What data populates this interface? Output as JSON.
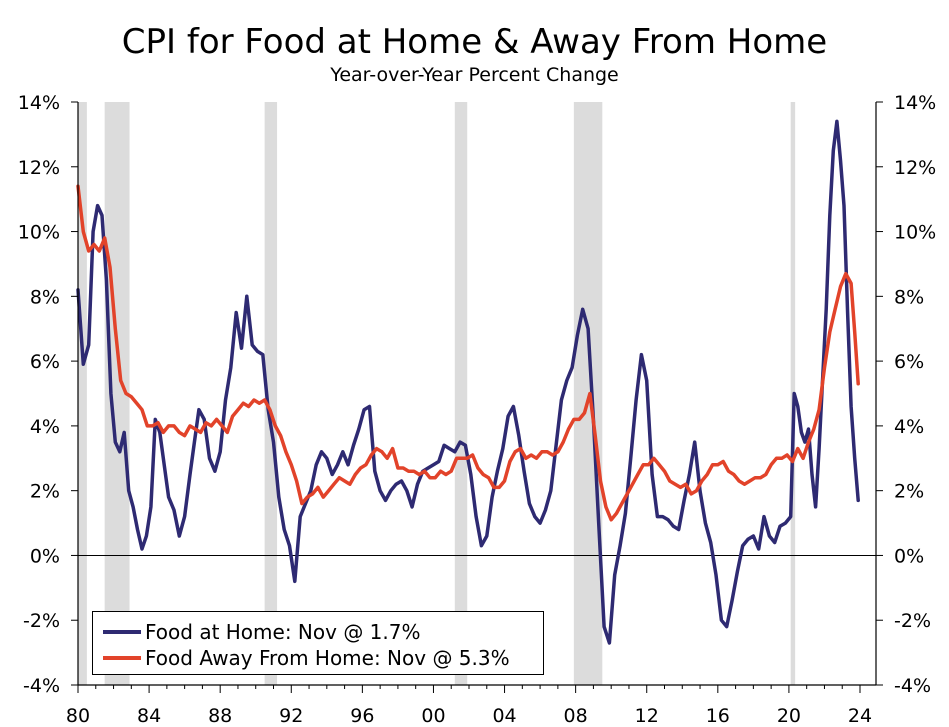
{
  "colors": {
    "food_at_home": "#2e2a72",
    "food_away": "#e2432a",
    "recession": "#dcdcdc"
  },
  "chart_data": {
    "type": "line",
    "title": "CPI for Food at Home & Away From Home",
    "subtitle": "Year-over-Year Percent Change",
    "xlabel": "",
    "ylabel": "",
    "ylim": [
      -4,
      14
    ],
    "xlim": [
      1980,
      2024.9
    ],
    "y_ticks": [
      -4,
      -2,
      0,
      2,
      4,
      6,
      8,
      10,
      12,
      14
    ],
    "y_tick_labels": [
      "-4%",
      "-2%",
      "0%",
      "2%",
      "4%",
      "6%",
      "8%",
      "10%",
      "12%",
      "14%"
    ],
    "x_ticks": [
      1980,
      1984,
      1988,
      1992,
      1996,
      2000,
      2004,
      2008,
      2012,
      2016,
      2020,
      2024
    ],
    "x_tick_labels": [
      "80",
      "84",
      "88",
      "92",
      "96",
      "00",
      "04",
      "08",
      "12",
      "16",
      "20",
      "24"
    ],
    "recessions": [
      [
        1980.0,
        1980.5
      ],
      [
        1981.5,
        1982.9
      ],
      [
        1990.5,
        1991.2
      ],
      [
        2001.2,
        2001.9
      ],
      [
        2007.9,
        2009.5
      ],
      [
        2020.1,
        2020.35
      ]
    ],
    "series": [
      {
        "name": "Food at Home",
        "legend_label": "Food at Home: Nov @ 1.7%",
        "x": [
          1980.0,
          1980.3,
          1980.6,
          1980.85,
          1981.1,
          1981.35,
          1981.6,
          1981.85,
          1982.1,
          1982.35,
          1982.6,
          1982.85,
          1983.1,
          1983.35,
          1983.6,
          1983.85,
          1984.1,
          1984.35,
          1984.6,
          1984.85,
          1985.1,
          1985.4,
          1985.7,
          1986.0,
          1986.3,
          1986.55,
          1986.8,
          1987.1,
          1987.4,
          1987.7,
          1988.0,
          1988.3,
          1988.6,
          1988.9,
          1989.2,
          1989.5,
          1989.8,
          1990.1,
          1990.4,
          1990.7,
          1991.0,
          1991.3,
          1991.6,
          1991.9,
          1992.2,
          1992.5,
          1992.8,
          1993.1,
          1993.4,
          1993.7,
          1994.0,
          1994.3,
          1994.6,
          1994.9,
          1995.2,
          1995.5,
          1995.8,
          1996.1,
          1996.4,
          1996.7,
          1997.0,
          1997.3,
          1997.6,
          1997.9,
          1998.2,
          1998.5,
          1998.8,
          1999.1,
          1999.4,
          1999.7,
          2000.0,
          2000.3,
          2000.6,
          2000.9,
          2001.2,
          2001.5,
          2001.8,
          2002.1,
          2002.4,
          2002.7,
          2003.0,
          2003.3,
          2003.6,
          2003.9,
          2004.2,
          2004.5,
          2004.8,
          2005.1,
          2005.4,
          2005.7,
          2006.0,
          2006.3,
          2006.6,
          2006.9,
          2007.2,
          2007.5,
          2007.8,
          2008.1,
          2008.4,
          2008.7,
          2009.0,
          2009.3,
          2009.6,
          2009.9,
          2010.2,
          2010.5,
          2010.8,
          2011.1,
          2011.4,
          2011.7,
          2012.0,
          2012.3,
          2012.6,
          2012.9,
          2013.2,
          2013.5,
          2013.8,
          2014.1,
          2014.4,
          2014.7,
          2015.0,
          2015.3,
          2015.6,
          2015.9,
          2016.2,
          2016.5,
          2016.8,
          2017.1,
          2017.4,
          2017.7,
          2018.0,
          2018.3,
          2018.6,
          2018.9,
          2019.2,
          2019.5,
          2019.8,
          2020.1,
          2020.3,
          2020.5,
          2020.7,
          2020.9,
          2021.1,
          2021.3,
          2021.5,
          2021.7,
          2021.9,
          2022.1,
          2022.3,
          2022.5,
          2022.7,
          2022.9,
          2023.1,
          2023.3,
          2023.5,
          2023.7,
          2023.9
        ],
        "values": [
          8.2,
          5.9,
          6.5,
          10.0,
          10.8,
          10.5,
          8.5,
          5.0,
          3.5,
          3.2,
          3.8,
          2.0,
          1.5,
          0.8,
          0.2,
          0.6,
          1.5,
          4.2,
          3.8,
          2.8,
          1.8,
          1.4,
          0.6,
          1.2,
          2.5,
          3.5,
          4.5,
          4.2,
          3.0,
          2.6,
          3.2,
          4.8,
          5.8,
          7.5,
          6.4,
          8.0,
          6.5,
          6.3,
          6.2,
          4.5,
          3.5,
          1.8,
          0.8,
          0.3,
          -0.8,
          1.2,
          1.6,
          2.0,
          2.8,
          3.2,
          3.0,
          2.5,
          2.8,
          3.2,
          2.8,
          3.4,
          3.9,
          4.5,
          4.6,
          2.6,
          2.0,
          1.7,
          2.0,
          2.2,
          2.3,
          2.0,
          1.5,
          2.2,
          2.6,
          2.7,
          2.8,
          2.9,
          3.4,
          3.3,
          3.2,
          3.5,
          3.4,
          2.5,
          1.2,
          0.3,
          0.6,
          1.8,
          2.6,
          3.3,
          4.3,
          4.6,
          3.7,
          2.6,
          1.6,
          1.2,
          1.0,
          1.4,
          2.0,
          3.4,
          4.8,
          5.4,
          5.8,
          6.8,
          7.6,
          7.0,
          4.2,
          1.0,
          -2.2,
          -2.7,
          -0.6,
          0.3,
          1.3,
          3.0,
          4.8,
          6.2,
          5.4,
          2.5,
          1.2,
          1.2,
          1.1,
          0.9,
          0.8,
          1.7,
          2.5,
          3.5,
          2.0,
          1.0,
          0.4,
          -0.6,
          -2.0,
          -2.2,
          -1.4,
          -0.5,
          0.3,
          0.5,
          0.6,
          0.2,
          1.2,
          0.6,
          0.4,
          0.9,
          1.0,
          1.2,
          5.0,
          4.6,
          3.8,
          3.5,
          3.9,
          2.5,
          1.5,
          3.3,
          5.5,
          7.6,
          10.5,
          12.5,
          13.4,
          12.2,
          10.8,
          7.5,
          4.6,
          3.0,
          1.7
        ]
      },
      {
        "name": "Food Away From Home",
        "legend_label": "Food Away From Home: Nov @ 5.3%",
        "x": [
          1980.0,
          1980.3,
          1980.6,
          1980.9,
          1981.2,
          1981.5,
          1981.8,
          1982.1,
          1982.4,
          1982.7,
          1983.0,
          1983.3,
          1983.6,
          1983.9,
          1984.2,
          1984.5,
          1984.8,
          1985.1,
          1985.4,
          1985.7,
          1986.0,
          1986.3,
          1986.6,
          1986.9,
          1987.2,
          1987.5,
          1987.8,
          1988.1,
          1988.4,
          1988.7,
          1989.0,
          1989.3,
          1989.6,
          1989.9,
          1990.2,
          1990.5,
          1990.8,
          1991.1,
          1991.4,
          1991.7,
          1992.0,
          1992.3,
          1992.6,
          1992.9,
          1993.2,
          1993.5,
          1993.8,
          1994.1,
          1994.4,
          1994.7,
          1995.0,
          1995.3,
          1995.6,
          1995.9,
          1996.2,
          1996.5,
          1996.8,
          1997.1,
          1997.4,
          1997.7,
          1998.0,
          1998.3,
          1998.6,
          1998.9,
          1999.2,
          1999.5,
          1999.8,
          2000.1,
          2000.4,
          2000.7,
          2001.0,
          2001.3,
          2001.6,
          2001.9,
          2002.2,
          2002.5,
          2002.8,
          2003.1,
          2003.4,
          2003.7,
          2004.0,
          2004.3,
          2004.6,
          2004.9,
          2005.2,
          2005.5,
          2005.8,
          2006.1,
          2006.4,
          2006.7,
          2007.0,
          2007.3,
          2007.6,
          2007.9,
          2008.2,
          2008.5,
          2008.8,
          2009.1,
          2009.4,
          2009.7,
          2010.0,
          2010.3,
          2010.6,
          2010.9,
          2011.2,
          2011.5,
          2011.8,
          2012.1,
          2012.4,
          2012.7,
          2013.0,
          2013.3,
          2013.6,
          2013.9,
          2014.2,
          2014.5,
          2014.8,
          2015.1,
          2015.4,
          2015.7,
          2016.0,
          2016.3,
          2016.6,
          2016.9,
          2017.2,
          2017.5,
          2017.8,
          2018.1,
          2018.4,
          2018.7,
          2019.0,
          2019.3,
          2019.6,
          2019.9,
          2020.2,
          2020.5,
          2020.8,
          2021.1,
          2021.4,
          2021.7,
          2022.0,
          2022.3,
          2022.6,
          2022.9,
          2023.2,
          2023.5,
          2023.7,
          2023.9
        ],
        "values": [
          11.4,
          10.0,
          9.4,
          9.6,
          9.4,
          9.8,
          8.9,
          7.0,
          5.4,
          5.0,
          4.9,
          4.7,
          4.5,
          4.0,
          4.0,
          4.1,
          3.8,
          4.0,
          4.0,
          3.8,
          3.7,
          4.0,
          3.9,
          3.8,
          4.1,
          4.0,
          4.2,
          4.0,
          3.8,
          4.3,
          4.5,
          4.7,
          4.6,
          4.8,
          4.7,
          4.8,
          4.5,
          4.0,
          3.7,
          3.2,
          2.8,
          2.3,
          1.6,
          1.8,
          1.9,
          2.1,
          1.8,
          2.0,
          2.2,
          2.4,
          2.3,
          2.2,
          2.5,
          2.7,
          2.8,
          3.1,
          3.3,
          3.2,
          3.0,
          3.3,
          2.7,
          2.7,
          2.6,
          2.6,
          2.5,
          2.6,
          2.4,
          2.4,
          2.6,
          2.5,
          2.6,
          3.0,
          3.0,
          3.0,
          3.1,
          2.7,
          2.5,
          2.4,
          2.1,
          2.1,
          2.3,
          2.9,
          3.2,
          3.3,
          3.0,
          3.1,
          3.0,
          3.2,
          3.2,
          3.1,
          3.2,
          3.5,
          3.9,
          4.2,
          4.2,
          4.4,
          5.0,
          3.7,
          2.3,
          1.5,
          1.1,
          1.3,
          1.6,
          1.9,
          2.2,
          2.5,
          2.8,
          2.8,
          3.0,
          2.8,
          2.6,
          2.3,
          2.2,
          2.1,
          2.2,
          1.9,
          2.0,
          2.3,
          2.5,
          2.8,
          2.8,
          2.9,
          2.6,
          2.5,
          2.3,
          2.2,
          2.3,
          2.4,
          2.4,
          2.5,
          2.8,
          3.0,
          3.0,
          3.1,
          2.9,
          3.3,
          3.0,
          3.5,
          3.9,
          4.5,
          5.8,
          6.9,
          7.6,
          8.3,
          8.7,
          8.4,
          6.9,
          5.3
        ]
      }
    ]
  }
}
